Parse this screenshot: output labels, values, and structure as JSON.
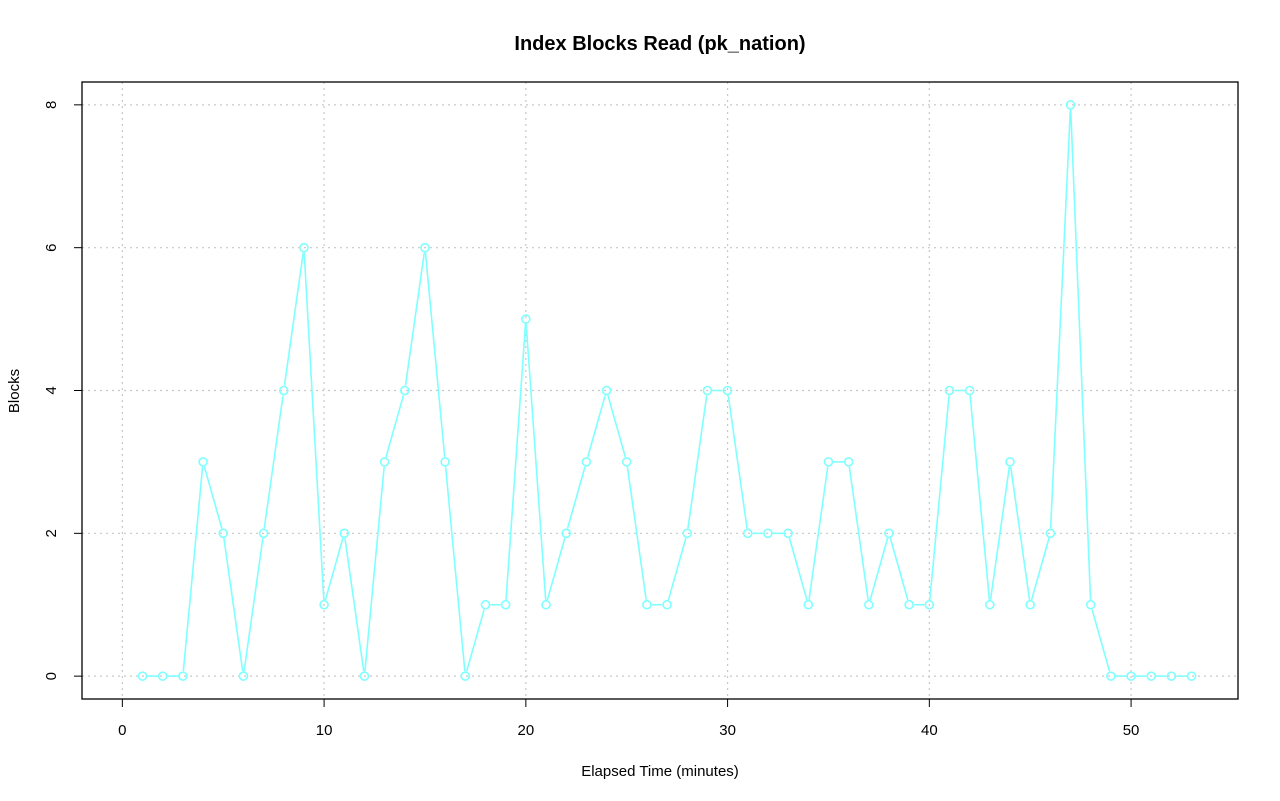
{
  "chart_data": {
    "type": "line",
    "title": "Index Blocks Read (pk_nation)",
    "xlabel": "Elapsed Time (minutes)",
    "ylabel": "Blocks",
    "xlim": [
      -2,
      55.3
    ],
    "ylim": [
      -0.32,
      8.32
    ],
    "x_ticks": [
      0,
      10,
      20,
      30,
      40,
      50
    ],
    "y_ticks": [
      0,
      2,
      4,
      6,
      8
    ],
    "grid": true,
    "line_color": "#7fffff",
    "series": [
      {
        "x": [
          1,
          2,
          3,
          4,
          5,
          6,
          7,
          8,
          9,
          10,
          11,
          12,
          13,
          14,
          15,
          16,
          17,
          18,
          19,
          20,
          21,
          22,
          23,
          24,
          25,
          26,
          27,
          28,
          29,
          30,
          31,
          32,
          33,
          34,
          35,
          36,
          37,
          38,
          39,
          40,
          41,
          42,
          43,
          44,
          45,
          46,
          47,
          48,
          49,
          50,
          51,
          52,
          53
        ],
        "values": [
          0,
          0,
          0,
          3,
          2,
          0,
          2,
          4,
          6,
          1,
          2,
          0,
          3,
          4,
          6,
          3,
          0,
          1,
          1,
          5,
          1,
          2,
          3,
          4,
          3,
          1,
          1,
          2,
          4,
          4,
          2,
          2,
          2,
          1,
          3,
          3,
          1,
          2,
          1,
          1,
          4,
          4,
          1,
          3,
          1,
          2,
          8,
          1,
          0,
          0,
          0,
          0,
          0
        ]
      }
    ]
  }
}
